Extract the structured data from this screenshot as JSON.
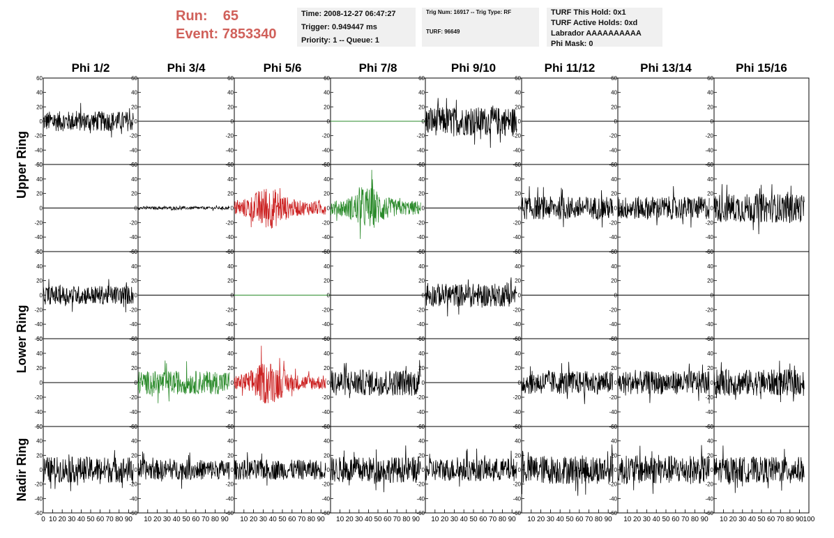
{
  "header": {
    "run_label": "Run:",
    "run_value": "65",
    "event_label": "Event:",
    "event_value": "7853340",
    "time": "Time: 2008-12-27 06:47:27",
    "trigger": "Trigger: 0.949447 ms",
    "priority": "Priority: 1 -- Queue: 1",
    "trig_num": "Trig Num: 16917 -- Trig Type: RF",
    "turf": "TURF: 96649",
    "turf_this_hold": "TURF This Hold: 0x1",
    "turf_active_holds": "TURF Active Holds: 0xd",
    "labrador": "Labrador AAAAAAAAAA",
    "phi_mask": "Phi Mask: 0"
  },
  "chart_data": {
    "type": "line",
    "columns": [
      "Phi 1/2",
      "Phi 3/4",
      "Phi 5/6",
      "Phi 7/8",
      "Phi 9/10",
      "Phi 11/12",
      "Phi 13/14",
      "Phi 15/16"
    ],
    "row_groups": [
      "Upper Ring",
      "Lower Ring",
      "Nadir Ring"
    ],
    "ylim": [
      -60,
      60
    ],
    "yticks": [
      -60,
      -40,
      -20,
      0,
      20,
      40,
      60
    ],
    "xlim": [
      0,
      100
    ],
    "xticks": [
      0,
      10,
      20,
      30,
      40,
      50,
      60,
      70,
      80,
      90,
      100
    ],
    "colors": {
      "black": "#000000",
      "red": "#cc2222",
      "green": "#2a8a2a"
    },
    "rows": [
      [
        {
          "color": "black",
          "amp": 14,
          "x_end": 95
        },
        {
          "color": "black",
          "amp": 0,
          "x_end": 100
        },
        {
          "color": "black",
          "amp": 0,
          "x_end": 100
        },
        {
          "color": "green",
          "amp": 0,
          "x_end": 100
        },
        {
          "color": "black",
          "amp": 20,
          "x_end": 95
        },
        {
          "color": "black",
          "amp": 0,
          "x_end": 100
        },
        {
          "color": "black",
          "amp": 0,
          "x_end": 100
        },
        {
          "color": "black",
          "amp": 0,
          "x_end": 100
        }
      ],
      [
        {
          "color": "black",
          "amp": 0,
          "x_end": 100
        },
        {
          "color": "black",
          "amp": 2,
          "x_end": 95
        },
        {
          "color": "red",
          "amp": 22,
          "x_end": 95,
          "peak_x": 35
        },
        {
          "color": "green",
          "amp": 22,
          "x_end": 95,
          "peak_x": 40
        },
        {
          "color": "black",
          "amp": 0,
          "x_end": 100
        },
        {
          "color": "black",
          "amp": 16,
          "x_end": 95
        },
        {
          "color": "black",
          "amp": 16,
          "x_end": 95
        },
        {
          "color": "black",
          "amp": 20,
          "x_end": 95
        }
      ],
      [
        {
          "color": "black",
          "amp": 13,
          "x_end": 95
        },
        {
          "color": "black",
          "amp": 0,
          "x_end": 100
        },
        {
          "color": "green",
          "amp": 0,
          "x_end": 100
        },
        {
          "color": "black",
          "amp": 0,
          "x_end": 100
        },
        {
          "color": "black",
          "amp": 16,
          "x_end": 95
        },
        {
          "color": "black",
          "amp": 0,
          "x_end": 100
        },
        {
          "color": "black",
          "amp": 0,
          "x_end": 100
        },
        {
          "color": "black",
          "amp": 0,
          "x_end": 100
        }
      ],
      [
        {
          "color": "black",
          "amp": 0,
          "x_end": 100
        },
        {
          "color": "green",
          "amp": 16,
          "x_end": 95
        },
        {
          "color": "red",
          "amp": 22,
          "x_end": 95,
          "peak_x": 35
        },
        {
          "color": "black",
          "amp": 18,
          "x_end": 95
        },
        {
          "color": "black",
          "amp": 0,
          "x_end": 100
        },
        {
          "color": "black",
          "amp": 16,
          "x_end": 95
        },
        {
          "color": "black",
          "amp": 16,
          "x_end": 95
        },
        {
          "color": "black",
          "amp": 18,
          "x_end": 95
        }
      ],
      [
        {
          "color": "black",
          "amp": 18,
          "x_end": 95
        },
        {
          "color": "black",
          "amp": 14,
          "x_end": 95
        },
        {
          "color": "black",
          "amp": 14,
          "x_end": 95
        },
        {
          "color": "black",
          "amp": 18,
          "x_end": 95
        },
        {
          "color": "black",
          "amp": 16,
          "x_end": 95
        },
        {
          "color": "black",
          "amp": 20,
          "x_end": 95
        },
        {
          "color": "black",
          "amp": 20,
          "x_end": 95
        },
        {
          "color": "black",
          "amp": 18,
          "x_end": 95
        }
      ]
    ]
  }
}
